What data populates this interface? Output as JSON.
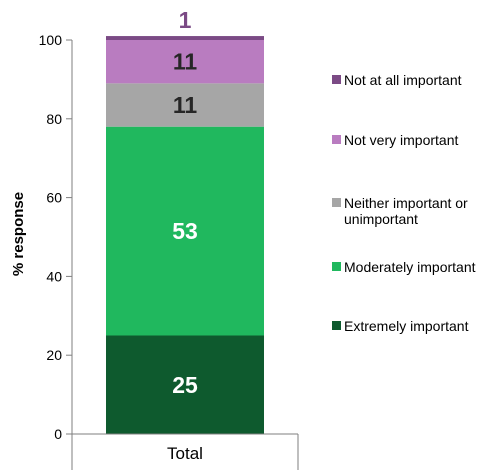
{
  "chart_data": {
    "type": "bar",
    "stacked": true,
    "categories": [
      "Total"
    ],
    "ylabel": "% response",
    "xlabel": "",
    "ylim": [
      0,
      100
    ],
    "yticks": [
      0,
      20,
      40,
      60,
      80,
      100
    ],
    "legend_position": "right",
    "series": [
      {
        "name": "Extremely important",
        "values": [
          25
        ],
        "color": "#0e5a2e",
        "label_color": "#ffffff"
      },
      {
        "name": "Moderately important",
        "values": [
          53
        ],
        "color": "#20b85e",
        "label_color": "#ffffff"
      },
      {
        "name": "Neither important or unimportant",
        "values": [
          11
        ],
        "color": "#a6a6a6",
        "label_color": "#262626"
      },
      {
        "name": "Not very important",
        "values": [
          11
        ],
        "color": "#b97cc0",
        "label_color": "#262626"
      },
      {
        "name": "Not at all important",
        "values": [
          1
        ],
        "color": "#7b4a85",
        "label_color": "#7b4a85"
      }
    ],
    "legend_order": [
      {
        "text": "Not at all important",
        "color": "#7b4a85"
      },
      {
        "text": "Not very important",
        "color": "#b97cc0"
      },
      {
        "text": "Neither important or",
        "text2": "unimportant",
        "color": "#a6a6a6"
      },
      {
        "text": "Moderately important",
        "color": "#20b85e"
      },
      {
        "text": "Extremely important",
        "color": "#0e5a2e"
      }
    ]
  }
}
